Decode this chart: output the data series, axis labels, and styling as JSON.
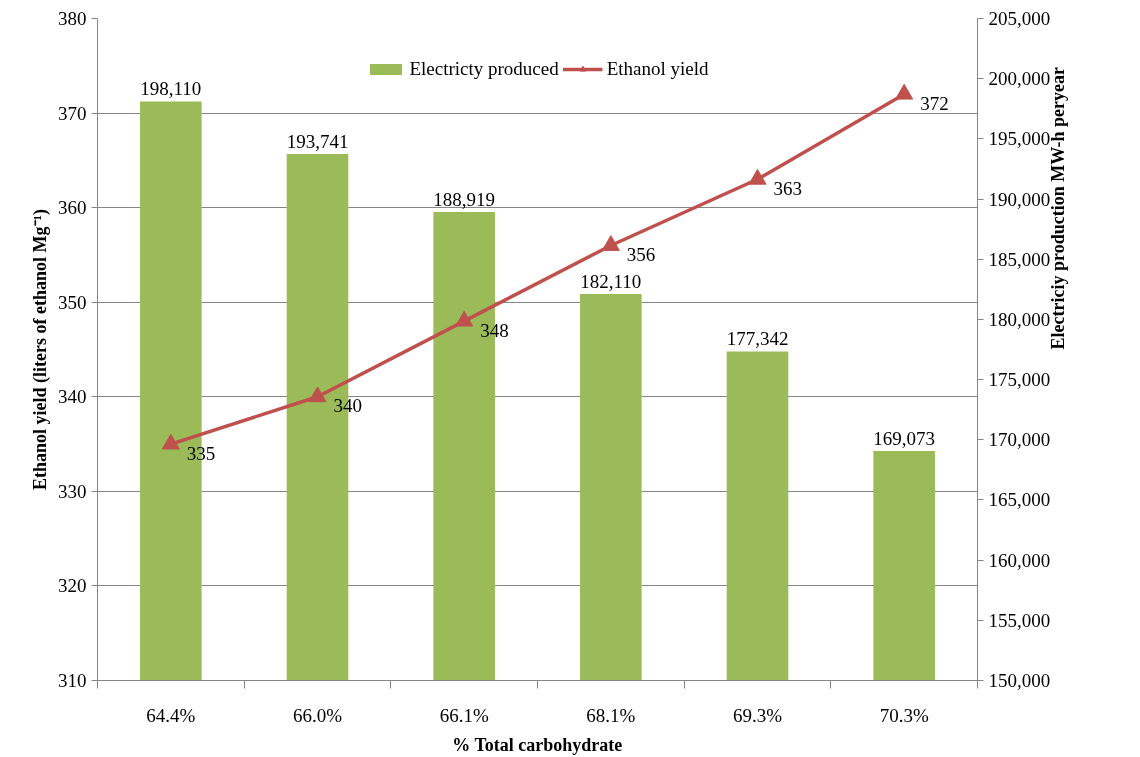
{
  "chart_data": {
    "type": "bar",
    "xlabel": "% Total carbohydrate",
    "ylabel": "Ethanol yield (liters of ethanol Mg⁻¹)",
    "y2label": "Electriciy production MW-h peryear",
    "categories": [
      "64.4%",
      "66.0%",
      "66.1%",
      "68.1%",
      "69.3%",
      "70.3%"
    ],
    "series": [
      {
        "name": "Electricty produced",
        "axis": "y2",
        "color": "#9bbb59",
        "values": [
          198110,
          193741,
          188919,
          182110,
          177342,
          169073
        ],
        "value_labels": [
          "198,110",
          "193,741",
          "188,919",
          "182,110",
          "177,342",
          "169,073"
        ]
      },
      {
        "name": "Ethanol yield",
        "type": "line",
        "color": "#c0504d",
        "marker": "triangle",
        "line_style": "solid",
        "values": [
          335,
          340,
          348,
          356,
          363,
          372
        ],
        "value_labels": [
          "335",
          "340",
          "348",
          "356",
          "363",
          "372"
        ]
      }
    ],
    "ylim": [
      310,
      380
    ],
    "yticks": [
      310,
      320,
      330,
      340,
      350,
      360,
      370,
      380
    ],
    "y2lim": [
      150000,
      205000
    ],
    "y2ticks": [
      {
        "value": 150000,
        "label": "150,000"
      },
      {
        "value": 155000,
        "label": "155,000"
      },
      {
        "value": 160000,
        "label": "160,000"
      },
      {
        "value": 165000,
        "label": "165,000"
      },
      {
        "value": 170000,
        "label": "170,000"
      },
      {
        "value": 175000,
        "label": "175,000"
      },
      {
        "value": 180000,
        "label": "180,000"
      },
      {
        "value": 185000,
        "label": "185,000"
      },
      {
        "value": 190000,
        "label": "190,000"
      },
      {
        "value": 195000,
        "label": "195,000"
      },
      {
        "value": 200000,
        "label": "200,000"
      },
      {
        "value": 205000,
        "label": "205,000"
      }
    ],
    "grid": "y",
    "legend": "top"
  }
}
